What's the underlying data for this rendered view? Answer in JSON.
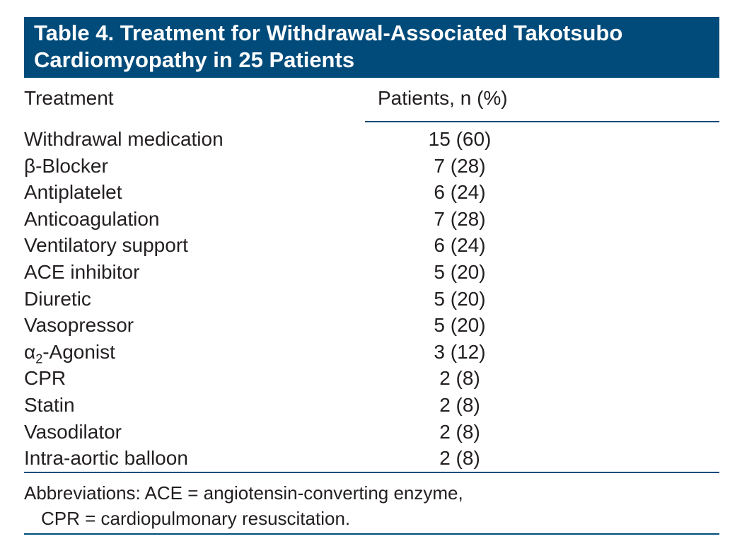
{
  "table": {
    "title_line1": "Table 4. Treatment for Withdrawal-Associated Takotsubo",
    "title_line2": "Cardiomyopathy in 25 Patients",
    "columns": [
      "Treatment",
      "Patients, n (%)"
    ],
    "rows": [
      {
        "treatment": "Withdrawal medication",
        "value": "15 (60)"
      },
      {
        "treatment": "β-Blocker",
        "value": "7 (28)"
      },
      {
        "treatment": "Antiplatelet",
        "value": "6 (24)"
      },
      {
        "treatment": "Anticoagulation",
        "value": "7 (28)"
      },
      {
        "treatment": "Ventilatory support",
        "value": "6 (24)"
      },
      {
        "treatment": "ACE inhibitor",
        "value": "5 (20)"
      },
      {
        "treatment": "Diuretic",
        "value": "5 (20)"
      },
      {
        "treatment": "Vasopressor",
        "value": "5 (20)"
      },
      {
        "treatment_prefix": "α",
        "treatment_sub": "2",
        "treatment_suffix": "-Agonist",
        "value": "3 (12)"
      },
      {
        "treatment": "CPR",
        "value": "2 (8)"
      },
      {
        "treatment": "Statin",
        "value": "2 (8)"
      },
      {
        "treatment": "Vasodilator",
        "value": "2 (8)"
      },
      {
        "treatment": "Intra-aortic balloon",
        "value": "2 (8)"
      }
    ],
    "footnote_line1": "Abbreviations: ACE = angiotensin-converting enzyme,",
    "footnote_line2": "CPR = cardiopulmonary resuscitation."
  },
  "colors": {
    "header_bar": "#004b7a",
    "rule": "#004b7a",
    "text": "#231f20"
  }
}
